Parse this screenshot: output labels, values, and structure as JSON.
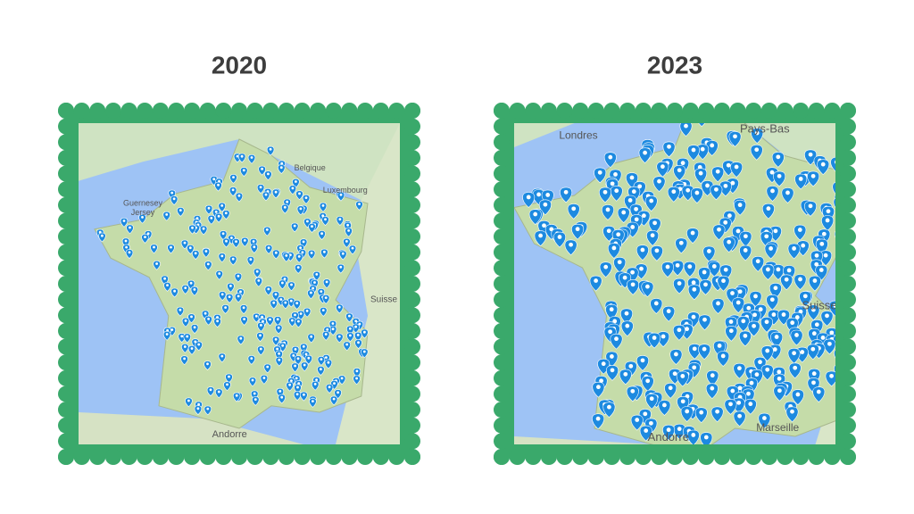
{
  "panels": [
    {
      "year": "2020",
      "labels": [
        "Guernesey",
        "Jersey",
        "Belgique",
        "Luxembourg",
        "Suisse",
        "Andorre"
      ]
    },
    {
      "year": "2023",
      "labels": [
        "Londres",
        "Pays-Bas",
        "Suisse",
        "Andorre",
        "Marseille"
      ]
    }
  ]
}
